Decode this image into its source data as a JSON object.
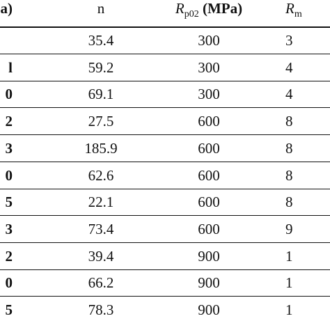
{
  "header": {
    "col0": "a)",
    "col1": "n",
    "col2_symbol": "R",
    "col2_sub": "p02",
    "col2_unit": " (MPa)",
    "col3_symbol": "R",
    "col3_sub": "m"
  },
  "rows": [
    {
      "c0": "",
      "c1": "35.4",
      "c2": "300",
      "c3": "3"
    },
    {
      "c0": "l",
      "c1": "59.2",
      "c2": "300",
      "c3": "4"
    },
    {
      "c0": "0",
      "c1": "69.1",
      "c2": "300",
      "c3": "4"
    },
    {
      "c0": "2",
      "c1": "27.5",
      "c2": "600",
      "c3": "8"
    },
    {
      "c0": "3",
      "c1": "185.9",
      "c2": "600",
      "c3": "8"
    },
    {
      "c0": "0",
      "c1": "62.6",
      "c2": "600",
      "c3": "8"
    },
    {
      "c0": "5",
      "c1": "22.1",
      "c2": "600",
      "c3": "8"
    },
    {
      "c0": "3",
      "c1": "73.4",
      "c2": "600",
      "c3": "9"
    },
    {
      "c0": "2",
      "c1": "39.4",
      "c2": "900",
      "c3": "1"
    },
    {
      "c0": "0",
      "c1": "66.2",
      "c2": "900",
      "c3": "1"
    },
    {
      "c0": "5",
      "c1": "78.3",
      "c2": "900",
      "c3": "1"
    }
  ]
}
